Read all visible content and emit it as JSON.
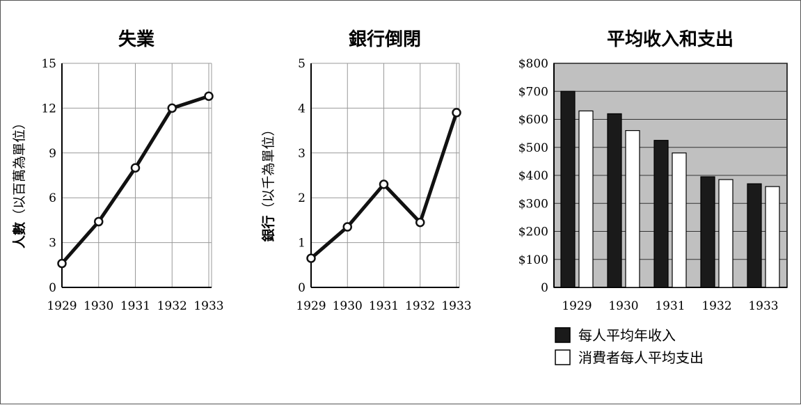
{
  "chart_data": [
    {
      "type": "line",
      "title": "失業",
      "ylabel": "人數（以百萬為單位）",
      "ylabel_bold": "人數",
      "ylabel_rest": "（以百萬為單位）",
      "x": [
        "1929",
        "1930",
        "1931",
        "1932",
        "1933"
      ],
      "yticks": [
        "0",
        "3",
        "6",
        "9",
        "12",
        "15"
      ],
      "ylim": [
        0,
        15
      ],
      "grid": true,
      "series": [
        {
          "values": [
            1.6,
            4.4,
            8.0,
            12.0,
            12.8
          ]
        }
      ]
    },
    {
      "type": "line",
      "title": "銀行倒閉",
      "ylabel": "銀行（以千為單位）",
      "ylabel_bold": "銀行",
      "ylabel_rest": "（以千為單位）",
      "x": [
        "1929",
        "1930",
        "1931",
        "1932",
        "1933"
      ],
      "yticks": [
        "0",
        "1",
        "2",
        "3",
        "4",
        "5"
      ],
      "ylim": [
        0,
        5
      ],
      "grid": true,
      "series": [
        {
          "values": [
            0.65,
            1.35,
            2.3,
            1.45,
            3.9
          ]
        }
      ]
    },
    {
      "type": "bar",
      "title": "平均收入和支出",
      "categories": [
        "1929",
        "1930",
        "1931",
        "1932",
        "1933"
      ],
      "yticks": [
        "0",
        "$100",
        "$200",
        "$300",
        "$400",
        "$500",
        "$600",
        "$700",
        "$800"
      ],
      "ylim": [
        0,
        800
      ],
      "grid": true,
      "legend_position": "bottom",
      "background_color": "#c0c0c0",
      "series": [
        {
          "name": "每人平均年收入",
          "color": "#1a1a1a",
          "values": [
            700,
            620,
            525,
            395,
            370
          ]
        },
        {
          "name": "消費者每人平均支出",
          "color": "#ffffff",
          "values": [
            630,
            560,
            480,
            385,
            360
          ]
        }
      ]
    }
  ]
}
